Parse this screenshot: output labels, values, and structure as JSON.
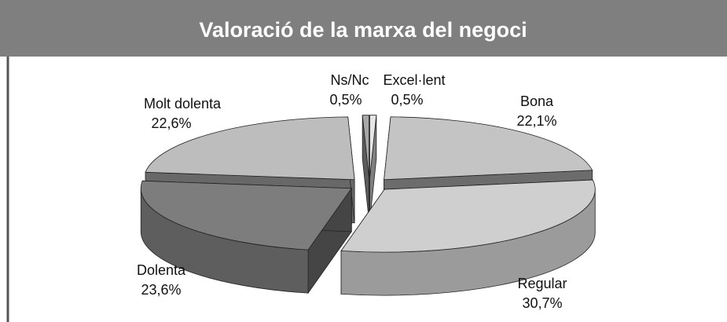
{
  "chart_data": {
    "type": "pie3d",
    "title": "Valoració de la marxa del negoci",
    "categories": [
      "Excel·lent",
      "Bona",
      "Regular",
      "Dolenta",
      "Molt dolenta",
      "Ns/Nc"
    ],
    "values": [
      0.5,
      22.1,
      30.7,
      23.6,
      22.6,
      0.5
    ],
    "value_labels": [
      "0,5%",
      "22,1%",
      "30,7%",
      "23,6%",
      "22,6%",
      "0,5%"
    ],
    "colors": [
      "#e6e6e6",
      "#c4c4c4",
      "#cfcfcf",
      "#7d7d7d",
      "#bdbdbd",
      "#a8a8a8"
    ]
  }
}
